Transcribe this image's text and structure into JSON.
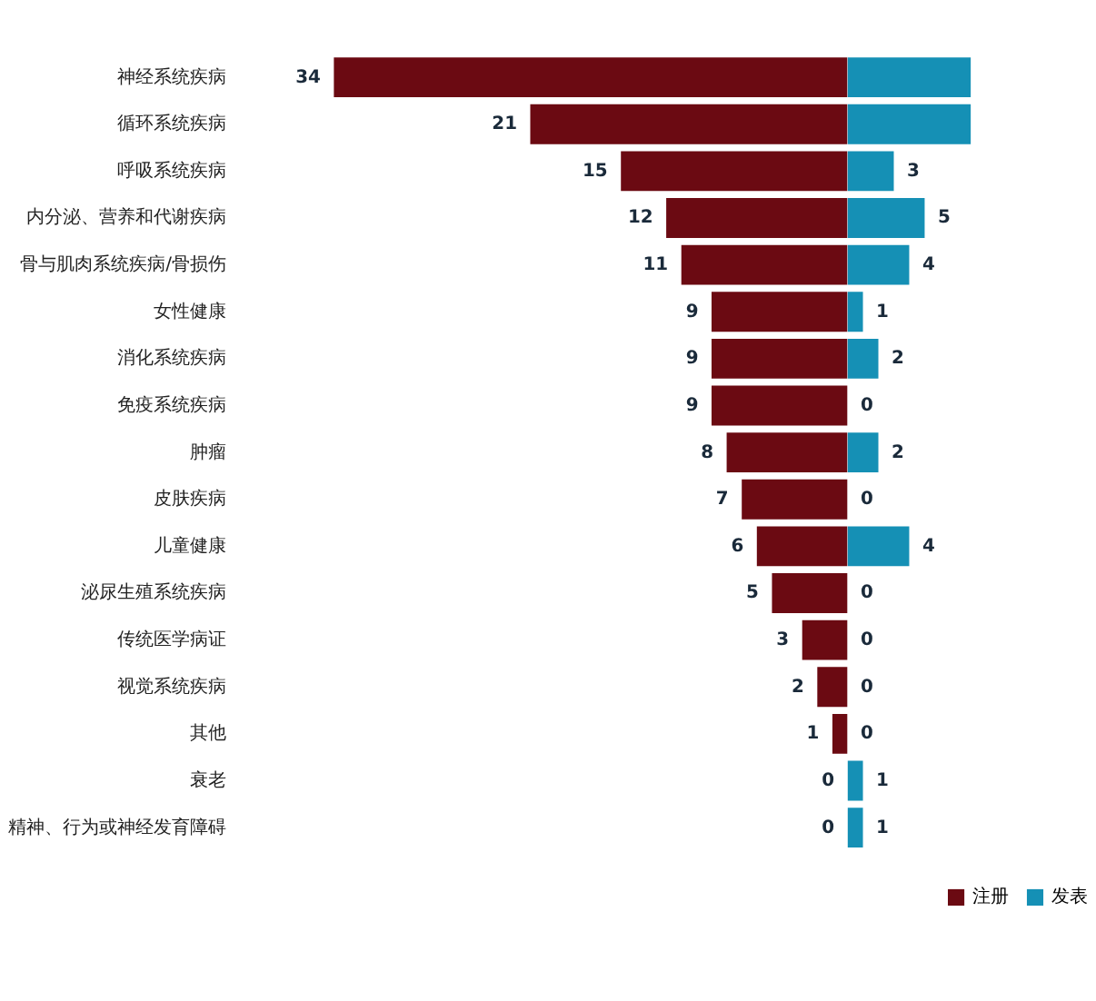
{
  "chart_data": [
    {
      "type": "bar",
      "orientation": "horizontal",
      "grid": false,
      "tick_labels": "y",
      "categories": [
        "神经系统疾病",
        "循环系统疾病",
        "呼吸系统疾病",
        "内分泌、营养和代谢疾病",
        "骨与肌肉系统疾病/骨损伤",
        "女性健康",
        "消化系统疾病",
        "免疫系统疾病",
        "肿瘤",
        "皮肤疾病",
        "儿童健康",
        "泌尿生殖系统疾病",
        "传统医学病证",
        "视觉系统疾病",
        "其他",
        "衰老",
        "精神、行为或神经发育障碍"
      ],
      "series": [
        {
          "name": "注册",
          "color": "#6b0a12",
          "values": [
            34,
            21,
            15,
            12,
            11,
            9,
            9,
            9,
            8,
            7,
            6,
            5,
            3,
            2,
            1,
            0,
            0
          ],
          "value_labels": [
            "34",
            "21",
            "15",
            "12",
            "11",
            "9",
            "9",
            "9",
            "8",
            "7",
            "6",
            "5",
            "3",
            "2",
            "1",
            "0",
            "0"
          ]
        }
      ]
    },
    {
      "type": "bar",
      "orientation": "horizontal",
      "grid": false,
      "tick_labels": false,
      "legend": "bottom right",
      "categories": [
        null,
        null,
        null,
        null,
        null,
        null,
        null,
        null,
        null,
        null,
        null,
        null,
        null,
        null,
        null,
        null,
        null
      ],
      "series": [
        {
          "name": "发表",
          "color": "#1590b5",
          "values": [
            8,
            8,
            3,
            5,
            4,
            1,
            2,
            0,
            2,
            0,
            4,
            0,
            0,
            0,
            0,
            1,
            1
          ],
          "value_labels": [
            null,
            null,
            "3",
            "5",
            "4",
            "1",
            "2",
            "0",
            "2",
            "0",
            "4",
            "0",
            "0",
            "0",
            "0",
            "1",
            "1"
          ]
        }
      ]
    }
  ]
}
